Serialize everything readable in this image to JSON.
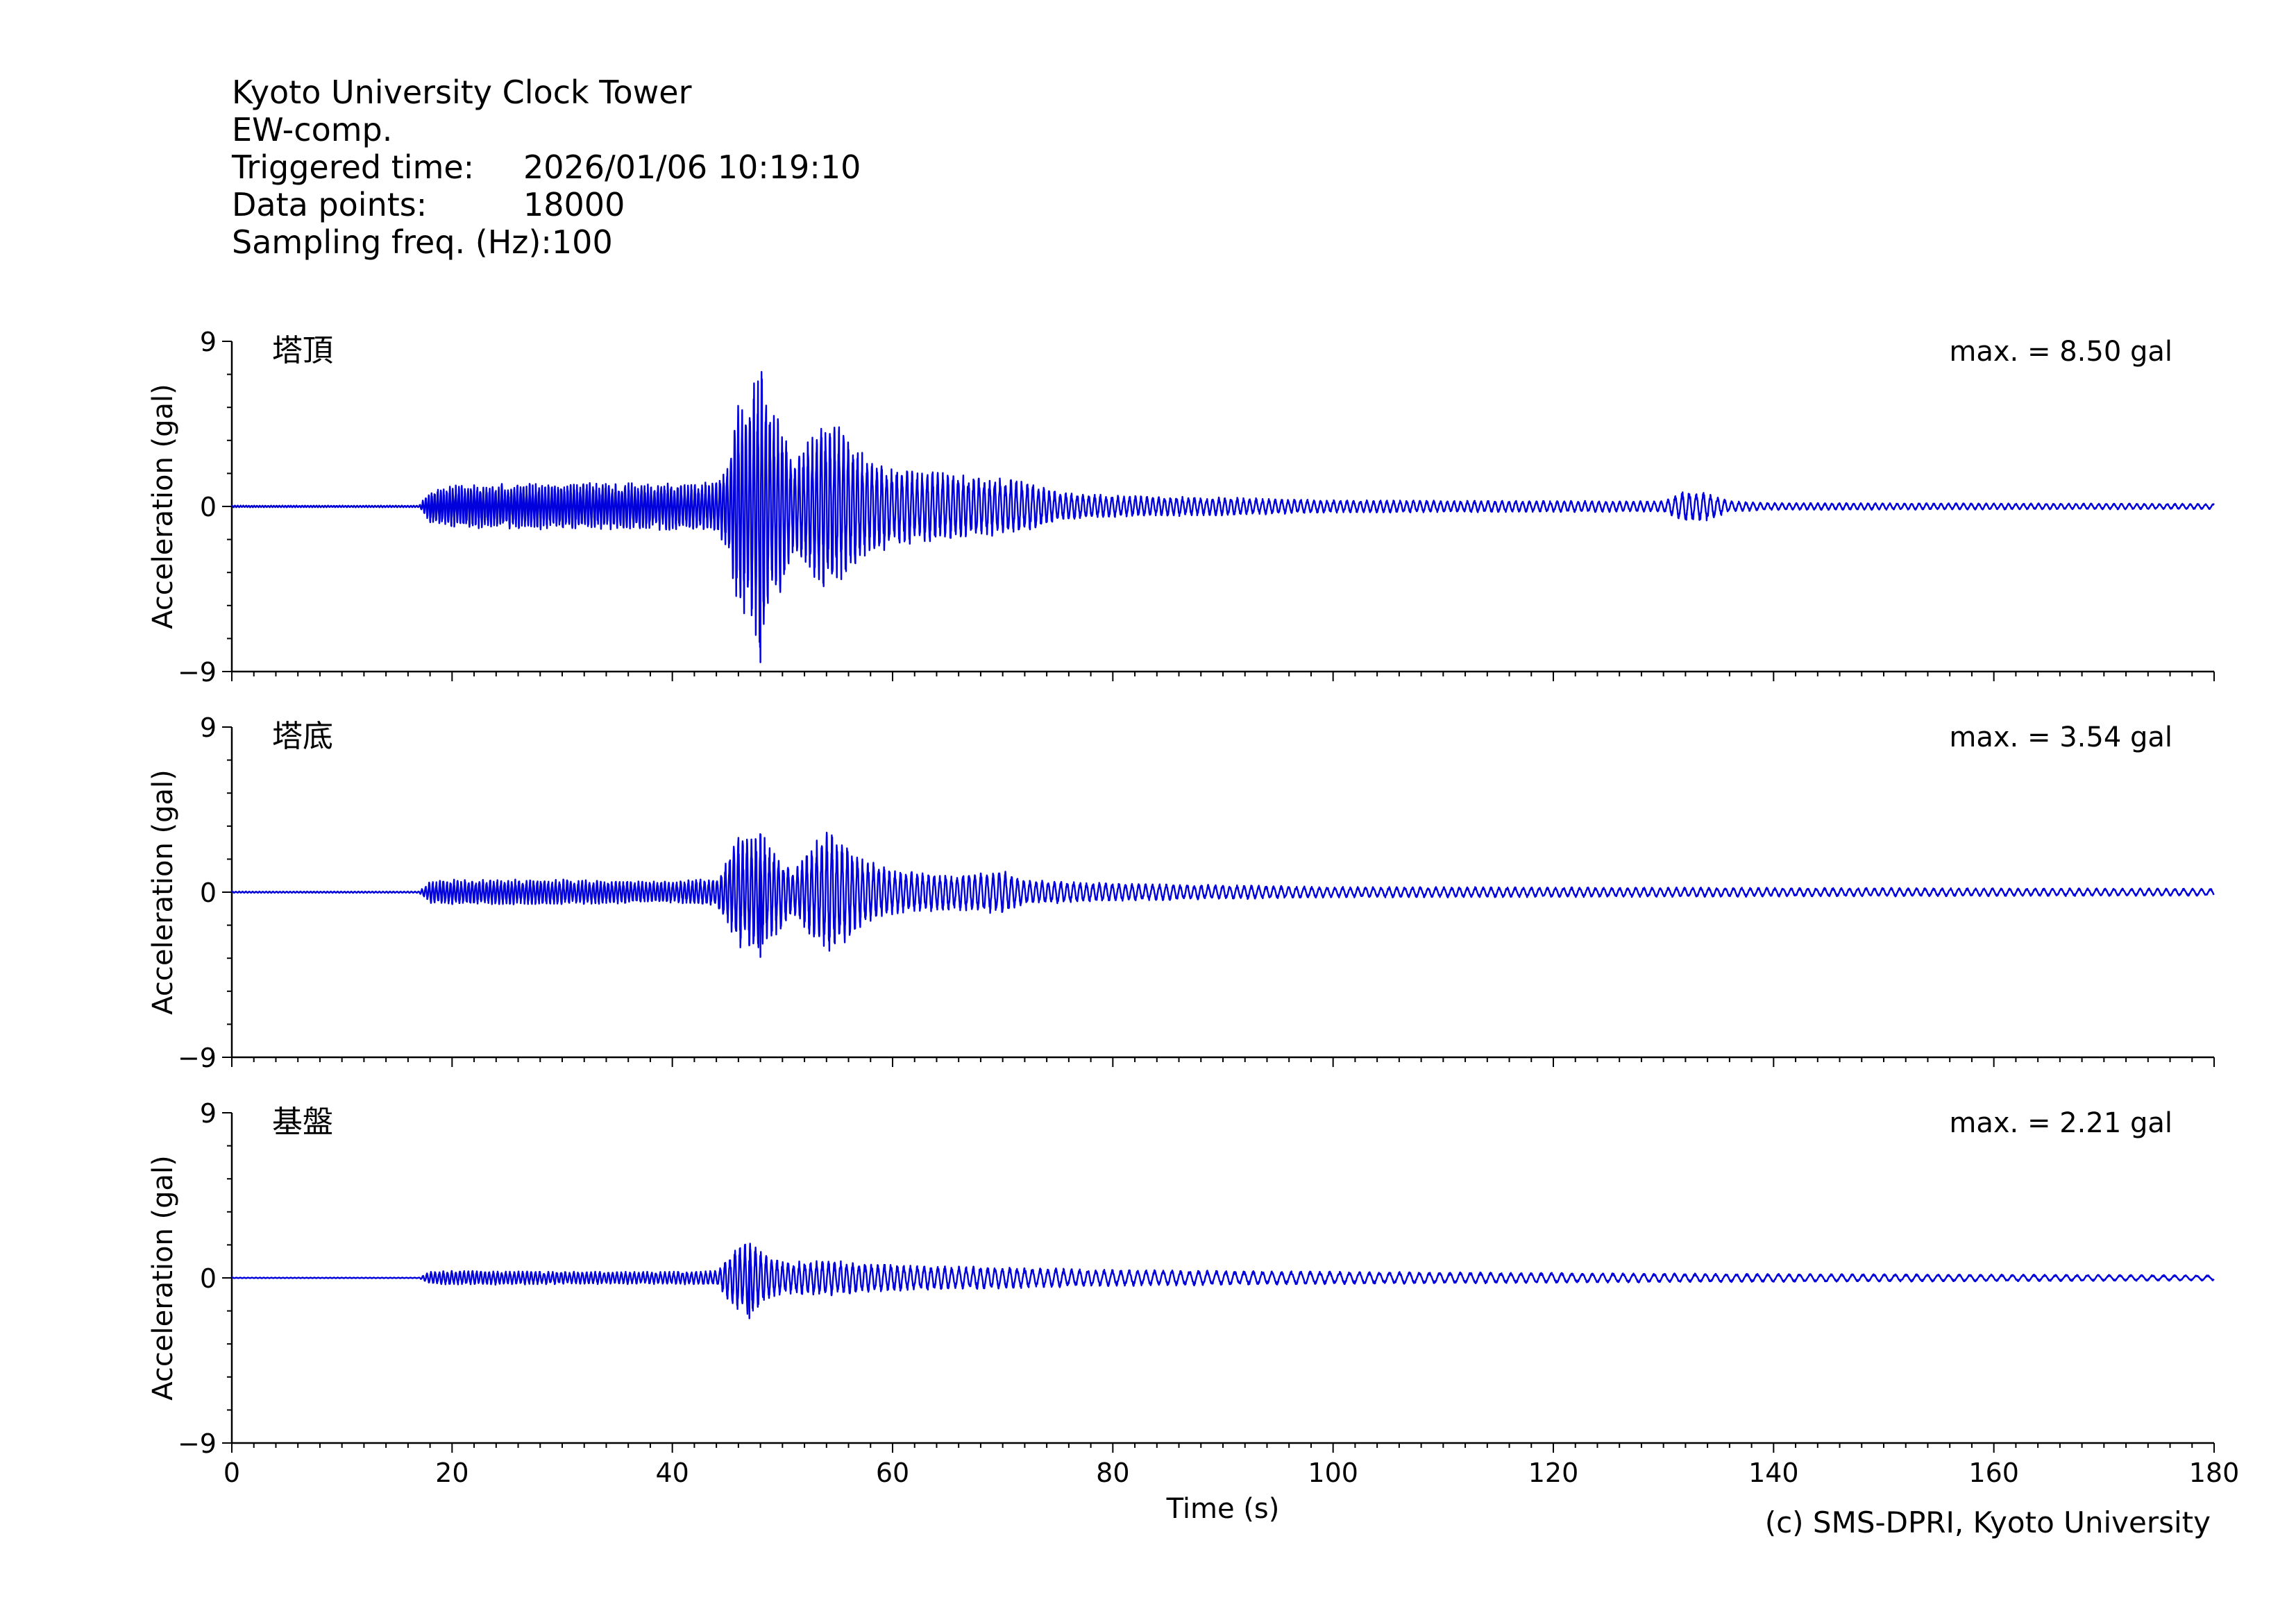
{
  "header": {
    "station": "Kyoto University Clock Tower",
    "component": "EW-comp.",
    "triggered_label": "Triggered time:",
    "triggered_value": "2026/01/06 10:19:10",
    "points_label": "Data points:",
    "points_value": "18000",
    "freq_label": "Sampling freq. (Hz):",
    "freq_value": "100"
  },
  "credit": "(c) SMS-DPRI, Kyoto University",
  "colors": {
    "trace": "#0000dd",
    "axis": "#000000"
  },
  "chart_data": [
    {
      "type": "line",
      "title": "塔頂",
      "annotation": "max. = 8.50 gal",
      "ylabel": "Acceleration (gal)",
      "xlabel": "",
      "xlim": [
        0,
        180
      ],
      "ylim": [
        -9,
        9
      ],
      "yticks": [
        "9",
        "0",
        "−9"
      ],
      "grid": false,
      "series": [
        {
          "x_range": [
            0,
            180
          ],
          "max_abs": 8.5,
          "envelope": [
            [
              0,
              0.05
            ],
            [
              17,
              0.05
            ],
            [
              18,
              0.9
            ],
            [
              20,
              1.2
            ],
            [
              30,
              1.3
            ],
            [
              40,
              1.3
            ],
            [
              44,
              1.4
            ],
            [
              45,
              2.5
            ],
            [
              46,
              6.0
            ],
            [
              47,
              5.8
            ],
            [
              48,
              8.5
            ],
            [
              49,
              5.2
            ],
            [
              50,
              5.0
            ],
            [
              51,
              2.5
            ],
            [
              52,
              3.2
            ],
            [
              53,
              4.5
            ],
            [
              54,
              5.0
            ],
            [
              55,
              4.5
            ],
            [
              57,
              3.0
            ],
            [
              60,
              2.2
            ],
            [
              66,
              1.8
            ],
            [
              72,
              1.5
            ],
            [
              75,
              0.8
            ],
            [
              80,
              0.6
            ],
            [
              90,
              0.5
            ],
            [
              100,
              0.35
            ],
            [
              130,
              0.3
            ],
            [
              132,
              0.9
            ],
            [
              134,
              0.8
            ],
            [
              136,
              0.3
            ],
            [
              140,
              0.2
            ],
            [
              180,
              0.15
            ]
          ],
          "period_s": [
            [
              0,
              0.25
            ],
            [
              40,
              0.3
            ],
            [
              60,
              0.45
            ],
            [
              100,
              0.6
            ],
            [
              180,
              0.7
            ]
          ]
        }
      ]
    },
    {
      "type": "line",
      "title": "塔底",
      "annotation": "max. = 3.54 gal",
      "ylabel": "Acceleration (gal)",
      "xlabel": "",
      "xlim": [
        0,
        180
      ],
      "ylim": [
        -9,
        9
      ],
      "yticks": [
        "9",
        "0",
        "−9"
      ],
      "grid": false,
      "series": [
        {
          "x_range": [
            0,
            180
          ],
          "max_abs": 3.54,
          "envelope": [
            [
              0,
              0.04
            ],
            [
              17,
              0.04
            ],
            [
              18,
              0.6
            ],
            [
              20,
              0.7
            ],
            [
              30,
              0.7
            ],
            [
              40,
              0.6
            ],
            [
              44,
              0.8
            ],
            [
              45,
              1.8
            ],
            [
              46,
              3.1
            ],
            [
              47,
              3.0
            ],
            [
              48,
              3.5
            ],
            [
              49,
              2.6
            ],
            [
              50,
              2.0
            ],
            [
              51,
              1.2
            ],
            [
              53,
              2.8
            ],
            [
              54,
              3.4
            ],
            [
              55,
              3.2
            ],
            [
              57,
              2.0
            ],
            [
              60,
              1.2
            ],
            [
              66,
              1.0
            ],
            [
              70,
              1.2
            ],
            [
              72,
              0.7
            ],
            [
              80,
              0.5
            ],
            [
              90,
              0.4
            ],
            [
              100,
              0.3
            ],
            [
              180,
              0.2
            ]
          ],
          "period_s": [
            [
              0,
              0.3
            ],
            [
              40,
              0.35
            ],
            [
              60,
              0.5
            ],
            [
              100,
              0.7
            ],
            [
              180,
              0.8
            ]
          ]
        }
      ]
    },
    {
      "type": "line",
      "title": "基盤",
      "annotation": "max. = 2.21 gal",
      "ylabel": "Acceleration (gal)",
      "xlabel": "Time (s)",
      "xlim": [
        0,
        180
      ],
      "ylim": [
        -9,
        9
      ],
      "xticks": [
        0,
        20,
        40,
        60,
        80,
        100,
        120,
        140,
        160,
        180
      ],
      "yticks": [
        "9",
        "0",
        "−9"
      ],
      "grid": false,
      "series": [
        {
          "x_range": [
            0,
            180
          ],
          "max_abs": 2.21,
          "envelope": [
            [
              0,
              0.02
            ],
            [
              17,
              0.02
            ],
            [
              18,
              0.35
            ],
            [
              20,
              0.4
            ],
            [
              30,
              0.35
            ],
            [
              40,
              0.35
            ],
            [
              44,
              0.4
            ],
            [
              45,
              1.2
            ],
            [
              46,
              1.8
            ],
            [
              47,
              2.2
            ],
            [
              48,
              1.6
            ],
            [
              49,
              1.2
            ],
            [
              50,
              0.9
            ],
            [
              54,
              1.0
            ],
            [
              58,
              0.8
            ],
            [
              62,
              0.7
            ],
            [
              70,
              0.6
            ],
            [
              80,
              0.45
            ],
            [
              100,
              0.35
            ],
            [
              130,
              0.25
            ],
            [
              180,
              0.15
            ]
          ],
          "period_s": [
            [
              0,
              0.35
            ],
            [
              40,
              0.4
            ],
            [
              60,
              0.6
            ],
            [
              100,
              0.9
            ],
            [
              180,
              1.0
            ]
          ]
        }
      ]
    }
  ]
}
